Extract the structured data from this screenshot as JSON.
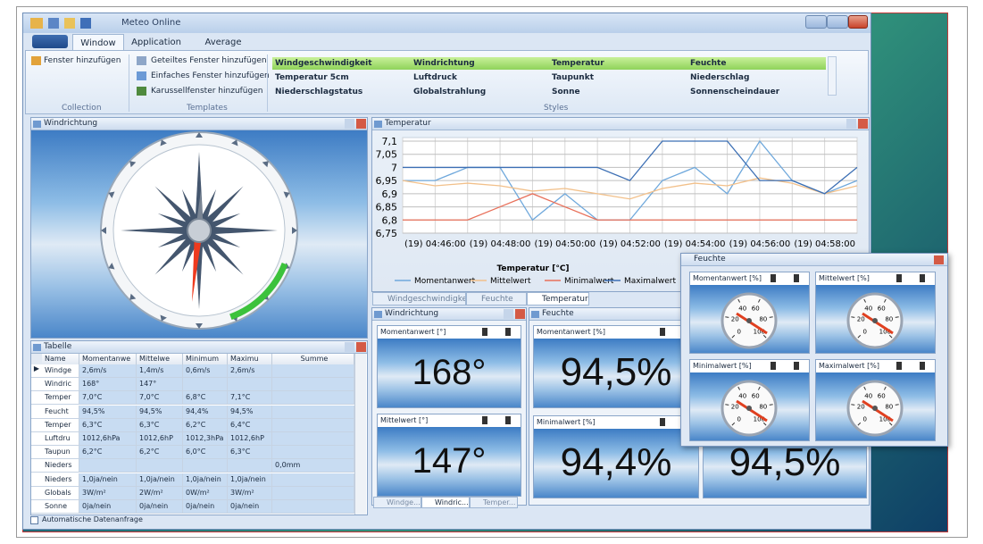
{
  "window": {
    "title": "Meteo Online"
  },
  "ribbon": {
    "tabs": [
      "Window",
      "Application",
      "Average"
    ],
    "collection": {
      "items": [
        "Fenster hinzufügen"
      ],
      "label": "Collection"
    },
    "templates": {
      "items": [
        "Geteiltes Fenster hinzufügen",
        "Einfaches Fenster hinzufügen",
        "Karussellfenster hinzufügen"
      ],
      "label": "Templates"
    },
    "styles": {
      "items": [
        [
          "Windgeschwindigkeit",
          "Windrichtung",
          "Temperatur",
          "Feuchte"
        ],
        [
          "Temperatur 5cm",
          "Luftdruck",
          "Taupunkt",
          "Niederschlag"
        ],
        [
          "Niederschlagstatus",
          "Globalstrahlung",
          "Sonne",
          "Sonnenscheindauer"
        ]
      ],
      "label": "Styles"
    }
  },
  "compass_panel": {
    "title": "Windrichtung"
  },
  "temperature_panel": {
    "title": "Temperatur"
  },
  "chart_data": {
    "type": "line",
    "legend_title": "Temperatur [°C]",
    "categories": [
      null,
      "(19) 04:46:00",
      null,
      "(19) 04:48:00",
      null,
      "(19) 04:50:00",
      null,
      "(19) 04:52:00",
      null,
      "(19) 04:54:00",
      null,
      "(19) 04:56:00",
      null,
      "(19) 04:58:00",
      null
    ],
    "ylim": [
      6.75,
      7.1
    ],
    "yticks": [
      {
        "value": 6.75,
        "label": "6,75"
      },
      {
        "value": 6.8,
        "label": "6,8"
      },
      {
        "value": 6.85,
        "label": "6,85"
      },
      {
        "value": 6.9,
        "label": "6,9"
      },
      {
        "value": 6.95,
        "label": "6,95"
      },
      {
        "value": 7,
        "label": "7"
      },
      {
        "value": 7.05,
        "label": "7,05"
      },
      {
        "value": 7.1,
        "label": "7,1"
      }
    ],
    "grid": true,
    "series": [
      {
        "name": "Momentanwert",
        "color": "#6fa8dc",
        "values": [
          6.95,
          6.95,
          7.0,
          7.0,
          6.8,
          6.9,
          6.8,
          6.8,
          6.95,
          7.0,
          6.9,
          7.1,
          6.95,
          6.9,
          6.95
        ]
      },
      {
        "name": "Mittelwert",
        "color": "#f2c08a",
        "values": [
          6.95,
          6.93,
          6.94,
          6.93,
          6.91,
          6.92,
          6.9,
          6.88,
          6.92,
          6.94,
          6.93,
          6.96,
          6.94,
          6.9,
          6.93
        ]
      },
      {
        "name": "Minimalwert",
        "color": "#e8705a",
        "values": [
          6.8,
          6.8,
          6.8,
          6.85,
          6.9,
          6.85,
          6.8,
          6.8,
          6.8,
          6.8,
          6.8,
          6.8,
          6.8,
          6.8,
          6.8
        ]
      },
      {
        "name": "Maximalwert",
        "color": "#3c6fb4",
        "values": [
          7.0,
          7.0,
          7.0,
          7.0,
          7.0,
          7.0,
          7.0,
          6.95,
          7.1,
          7.1,
          7.1,
          6.95,
          6.95,
          6.9,
          7.0
        ]
      }
    ]
  },
  "center_tabs": [
    "Windgeschwindigkeit",
    "Feuchte",
    "Temperatur"
  ],
  "wind_panel": {
    "title": "Windrichtung",
    "tiles": [
      {
        "label": "Momentanwert [°]",
        "value": "168°"
      },
      {
        "label": "Mittelwert [°]",
        "value": "147°"
      }
    ]
  },
  "humidity_panel": {
    "title": "Feuchte",
    "tiles": [
      {
        "label": "Momentanwert [%]",
        "value": "94,5%"
      },
      {
        "label": "Minimalwert [%]",
        "value": "94,4%"
      },
      {
        "value": "94,5%"
      }
    ]
  },
  "floating_window": {
    "title": "Feuchte",
    "gauges": [
      "Momentanwert [%]",
      "Mittelwert [%]",
      "Minimalwert [%]",
      "Maximalwert [%]"
    ],
    "dial_labels": [
      0,
      20,
      40,
      60,
      80,
      100
    ]
  },
  "table": {
    "title": "Tabelle",
    "columns": [
      "Name",
      "Momentanwe",
      "Mittelwe",
      "Minimum",
      "Maximu",
      "Summe"
    ],
    "rows": [
      [
        "Windge",
        "2,6m/s",
        "1,4m/s",
        "0,6m/s",
        "2,6m/s",
        null
      ],
      [
        "Windric",
        "168°",
        "147°",
        null,
        null,
        null
      ],
      [
        "Temper",
        "7,0°C",
        "7,0°C",
        "6,8°C",
        "7,1°C",
        null
      ],
      [
        "Feucht",
        "94,5%",
        "94,5%",
        "94,4%",
        "94,5%",
        null
      ],
      [
        "Temper",
        "6,3°C",
        "6,3°C",
        "6,2°C",
        "6,4°C",
        null
      ],
      [
        "Luftdru",
        "1012,6hPa",
        "1012,6hP",
        "1012,3hPa",
        "1012,6hP",
        null
      ],
      [
        "Taupun",
        "6,2°C",
        "6,2°C",
        "6,0°C",
        "6,3°C",
        null
      ],
      [
        "Nieders",
        null,
        null,
        null,
        null,
        "0,0mm"
      ],
      [
        "Nieders",
        "1,0ja/nein",
        "1,0ja/nein",
        "1,0ja/nein",
        "1,0ja/nein",
        null
      ],
      [
        "Globals",
        "3W/m²",
        "2W/m²",
        "0W/m²",
        "3W/m²",
        null
      ],
      [
        "Sonne",
        "0ja/nein",
        "0ja/nein",
        "0ja/nein",
        "0ja/nein",
        null
      ]
    ]
  },
  "bottom_tabs": [
    "Windge...",
    "Windric...",
    "Temper..."
  ],
  "status": "Automatische Datenanfrage"
}
